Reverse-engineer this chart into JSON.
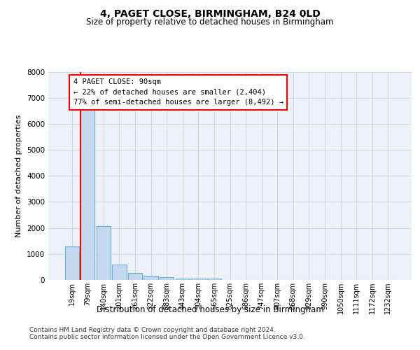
{
  "title": "4, PAGET CLOSE, BIRMINGHAM, B24 0LD",
  "subtitle": "Size of property relative to detached houses in Birmingham",
  "xlabel": "Distribution of detached houses by size in Birmingham",
  "ylabel": "Number of detached properties",
  "footnote1": "Contains HM Land Registry data © Crown copyright and database right 2024.",
  "footnote2": "Contains public sector information licensed under the Open Government Licence v3.0.",
  "bar_color": "#c5d8ee",
  "bar_edge_color": "#6baed6",
  "annotation_line1": "4 PAGET CLOSE: 90sqm",
  "annotation_line2": "← 22% of detached houses are smaller (2,404)",
  "annotation_line3": "77% of semi-detached houses are larger (8,492) →",
  "red_line_bar_index": 1,
  "ylim_max": 8000,
  "yticks": [
    0,
    1000,
    2000,
    3000,
    4000,
    5000,
    6000,
    7000,
    8000
  ],
  "categories": [
    "19sqm",
    "79sqm",
    "140sqm",
    "201sqm",
    "261sqm",
    "322sqm",
    "383sqm",
    "443sqm",
    "504sqm",
    "565sqm",
    "625sqm",
    "686sqm",
    "747sqm",
    "807sqm",
    "868sqm",
    "929sqm",
    "990sqm",
    "1050sqm",
    "1111sqm",
    "1172sqm",
    "1232sqm"
  ],
  "values": [
    1300,
    6600,
    2080,
    600,
    270,
    150,
    110,
    60,
    60,
    60,
    0,
    0,
    0,
    0,
    0,
    0,
    0,
    0,
    0,
    0,
    0
  ],
  "background_color": "#edf1f8",
  "grid_color": "#ccd4e4",
  "title_fontsize": 10,
  "subtitle_fontsize": 8.5,
  "ylabel_fontsize": 8,
  "xlabel_fontsize": 8.5,
  "tick_fontsize": 7,
  "footnote_fontsize": 6.5
}
